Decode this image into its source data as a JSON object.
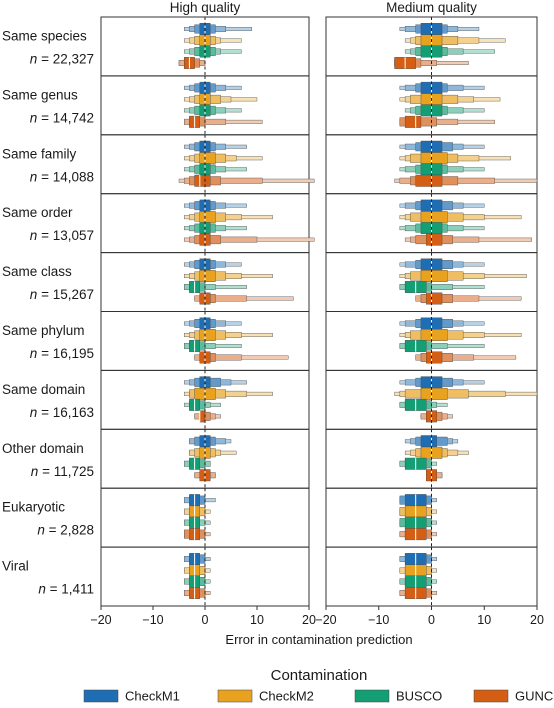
{
  "chart_data": {
    "type": "letter-value",
    "panels": [
      "High quality",
      "Medium quality"
    ],
    "xlabel": "Error in contamination prediction",
    "xlim": [
      -20,
      20
    ],
    "xticks": [
      -20,
      -10,
      0,
      10,
      20
    ],
    "xtick_labels": [
      "−20",
      "−10",
      "0",
      "10",
      "20"
    ],
    "reference_line_x": 0,
    "legend": {
      "title": "Contamination",
      "entries": [
        {
          "name": "CheckM1",
          "color": "#1f6eb4"
        },
        {
          "name": "CheckM2",
          "color": "#e8a21f"
        },
        {
          "name": "BUSCO",
          "color": "#139e73"
        },
        {
          "name": "GUNC",
          "color": "#d45f14"
        }
      ]
    },
    "rows": [
      {
        "label": "Same species",
        "n": "22,327",
        "data": [
          [
            [
              0,
              -1,
              1,
              -2,
              2,
              -3,
              4,
              -4,
              9
            ],
            [
              0,
              -1,
              1,
              -2,
              2,
              -3,
              3,
              -4,
              7
            ],
            [
              0,
              -1,
              1,
              -2,
              2,
              -3,
              3,
              -4,
              7
            ],
            [
              -3,
              -4,
              -2,
              -4,
              -1,
              -5,
              0,
              -5,
              0
            ]
          ],
          [
            [
              0,
              -2,
              2,
              -3,
              3,
              -5,
              5,
              -6,
              9
            ],
            [
              0,
              -2,
              2,
              -3,
              5,
              -4,
              9,
              -5,
              14
            ],
            [
              0,
              -2,
              2,
              -3,
              3,
              -4,
              6,
              -5,
              12
            ],
            [
              -5,
              -7,
              -3,
              -7,
              -2,
              -7,
              1,
              -7,
              7
            ]
          ]
        ]
      },
      {
        "label": "Same genus",
        "n": "14,742",
        "data": [
          [
            [
              0,
              -1,
              1,
              -2,
              2,
              -3,
              4,
              -4,
              7
            ],
            [
              0,
              -1,
              1,
              -2,
              3,
              -3,
              5,
              -4,
              10
            ],
            [
              0,
              -1,
              1,
              -2,
              2,
              -3,
              4,
              -4,
              7
            ],
            [
              -2,
              -3,
              -1,
              -3,
              0,
              -4,
              4,
              -4,
              11
            ]
          ],
          [
            [
              0,
              -2,
              2,
              -3,
              3,
              -5,
              6,
              -6,
              10
            ],
            [
              0,
              -2,
              2,
              -4,
              5,
              -5,
              8,
              -6,
              13
            ],
            [
              0,
              -2,
              2,
              -3,
              3,
              -4,
              6,
              -5,
              10
            ],
            [
              -3,
              -5,
              -2,
              -6,
              1,
              -6,
              5,
              -6,
              12
            ]
          ]
        ]
      },
      {
        "label": "Same family",
        "n": "14,088",
        "data": [
          [
            [
              0,
              -1,
              1,
              -2,
              2,
              -3,
              4,
              -4,
              8
            ],
            [
              0,
              -1,
              2,
              -2,
              4,
              -3,
              6,
              -4,
              11
            ],
            [
              0,
              -1,
              1,
              -2,
              2,
              -3,
              4,
              -4,
              8
            ],
            [
              -1,
              -2,
              1,
              -3,
              3,
              -4,
              11,
              -5,
              21
            ]
          ],
          [
            [
              0,
              -2,
              2,
              -3,
              4,
              -5,
              6,
              -6,
              10
            ],
            [
              0,
              -2,
              3,
              -4,
              5,
              -5,
              9,
              -6,
              15
            ],
            [
              0,
              -2,
              2,
              -3,
              3,
              -5,
              6,
              -6,
              10
            ],
            [
              0,
              -3,
              2,
              -4,
              5,
              -6,
              12,
              -7,
              20
            ]
          ]
        ]
      },
      {
        "label": "Same order",
        "n": "13,057",
        "data": [
          [
            [
              0,
              -1,
              1,
              -2,
              2,
              -3,
              4,
              -4,
              8
            ],
            [
              0,
              -1,
              2,
              -2,
              4,
              -3,
              7,
              -4,
              13
            ],
            [
              0,
              -1,
              1,
              -2,
              2,
              -3,
              4,
              -4,
              8
            ],
            [
              0,
              -1,
              1,
              -2,
              3,
              -3,
              10,
              -4,
              21
            ]
          ],
          [
            [
              0,
              -2,
              2,
              -3,
              4,
              -5,
              6,
              -6,
              10
            ],
            [
              0,
              -2,
              3,
              -4,
              6,
              -5,
              10,
              -6,
              17
            ],
            [
              0,
              -2,
              2,
              -3,
              3,
              -5,
              6,
              -6,
              10
            ],
            [
              0,
              -1,
              2,
              -3,
              4,
              -4,
              9,
              -5,
              19
            ]
          ]
        ]
      },
      {
        "label": "Same class",
        "n": "15,267",
        "data": [
          [
            [
              0,
              -1,
              1,
              -2,
              2,
              -3,
              4,
              -4,
              7
            ],
            [
              0,
              -1,
              2,
              -2,
              4,
              -3,
              7,
              -4,
              13
            ],
            [
              -2,
              -3,
              -1,
              -3,
              0,
              -4,
              2,
              -4,
              8
            ],
            [
              0,
              -1,
              1,
              -1,
              2,
              -2,
              8,
              -2,
              17
            ]
          ],
          [
            [
              0,
              -2,
              2,
              -3,
              4,
              -5,
              6,
              -6,
              10
            ],
            [
              0,
              -2,
              3,
              -4,
              6,
              -5,
              10,
              -6,
              18
            ],
            [
              -3,
              -5,
              -1,
              -5,
              0,
              -6,
              4,
              -6,
              10
            ],
            [
              0,
              -1,
              2,
              -2,
              4,
              -3,
              9,
              -3,
              17
            ]
          ]
        ]
      },
      {
        "label": "Same phylum",
        "n": "16,195",
        "data": [
          [
            [
              0,
              -1,
              1,
              -2,
              2,
              -3,
              4,
              -4,
              7
            ],
            [
              0,
              -1,
              2,
              -2,
              4,
              -3,
              7,
              -4,
              13
            ],
            [
              -2,
              -3,
              -1,
              -3,
              0,
              -4,
              2,
              -4,
              7
            ],
            [
              0,
              -1,
              1,
              -1,
              2,
              -2,
              7,
              -2,
              16
            ]
          ],
          [
            [
              0,
              -2,
              2,
              -3,
              4,
              -5,
              6,
              -6,
              10
            ],
            [
              0,
              -2,
              3,
              -4,
              6,
              -5,
              10,
              -6,
              17
            ],
            [
              -3,
              -5,
              -1,
              -5,
              0,
              -6,
              3,
              -6,
              10
            ],
            [
              0,
              -1,
              2,
              -2,
              4,
              -3,
              8,
              -3,
              16
            ]
          ]
        ]
      },
      {
        "label": "Same domain",
        "n": "16,163",
        "data": [
          [
            [
              0,
              -1,
              1,
              -2,
              3,
              -3,
              5,
              -4,
              8
            ],
            [
              0,
              -2,
              2,
              -3,
              4,
              -3,
              8,
              -4,
              13
            ],
            [
              -2,
              -3,
              -1,
              -3,
              0,
              -3,
              1,
              -4,
              3
            ],
            [
              -1,
              -1,
              0,
              -1,
              1,
              -2,
              2,
              -2,
              3
            ]
          ],
          [
            [
              0,
              -2,
              2,
              -3,
              4,
              -5,
              6,
              -6,
              10
            ],
            [
              0,
              -2,
              3,
              -5,
              7,
              -6,
              14,
              -7,
              20
            ],
            [
              -3,
              -5,
              -1,
              -5,
              0,
              -6,
              1,
              -6,
              3
            ],
            [
              0,
              -1,
              1,
              -1,
              2,
              -2,
              3,
              -2,
              4
            ]
          ]
        ]
      },
      {
        "label": "Other domain",
        "n": "11,725",
        "data": [
          [
            [
              0,
              -1,
              1,
              -2,
              2,
              -3,
              4,
              -3,
              5
            ],
            [
              0,
              -1,
              1,
              -2,
              2,
              -3,
              3,
              -3,
              6
            ],
            [
              -2,
              -3,
              -1,
              -3,
              0,
              -4,
              1,
              -4,
              1
            ],
            [
              0,
              -1,
              1,
              -1,
              1,
              -2,
              2,
              -2,
              2
            ]
          ],
          [
            [
              0,
              -2,
              1,
              -3,
              3,
              -4,
              4,
              -5,
              5
            ],
            [
              0,
              -2,
              2,
              -3,
              3,
              -4,
              5,
              -5,
              7
            ],
            [
              -3,
              -5,
              -1,
              -5,
              0,
              -6,
              0,
              -6,
              1
            ],
            [
              0,
              -1,
              1,
              -1,
              1,
              -1,
              2,
              -1,
              2
            ]
          ]
        ]
      },
      {
        "label": "Eukaryotic",
        "n": "2,828",
        "data": [
          [
            [
              -2,
              -3,
              -1,
              -3,
              0,
              -4,
              0,
              -4,
              2
            ],
            [
              -2,
              -3,
              -1,
              -3,
              0,
              -4,
              0,
              -4,
              1
            ],
            [
              -2,
              -3,
              -1,
              -3,
              -1,
              -4,
              0,
              -4,
              1
            ],
            [
              -2,
              -3,
              -1,
              -4,
              0,
              -4,
              0,
              -4,
              1
            ]
          ],
          [
            [
              -3,
              -5,
              -1,
              -6,
              0,
              -6,
              0,
              -6,
              1
            ],
            [
              -3,
              -5,
              -1,
              -6,
              0,
              -6,
              0,
              -6,
              1
            ],
            [
              -3,
              -5,
              -1,
              -6,
              0,
              -6,
              0,
              -6,
              1
            ],
            [
              -3,
              -5,
              -1,
              -5,
              0,
              -6,
              0,
              -6,
              1
            ]
          ]
        ]
      },
      {
        "label": "Viral",
        "n": "1,411",
        "data": [
          [
            [
              -2,
              -3,
              -1,
              -3,
              0,
              -4,
              0,
              -4,
              1
            ],
            [
              -2,
              -3,
              -1,
              -3,
              0,
              -4,
              0,
              -4,
              1
            ],
            [
              -2,
              -3,
              -1,
              -3,
              0,
              -4,
              0,
              -4,
              1
            ],
            [
              -2,
              -3,
              -1,
              -3,
              0,
              -4,
              0,
              -4,
              1
            ]
          ],
          [
            [
              -3,
              -5,
              -1,
              -5,
              0,
              -6,
              0,
              -6,
              1
            ],
            [
              -3,
              -5,
              -1,
              -5,
              0,
              -6,
              0,
              -6,
              1
            ],
            [
              -3,
              -5,
              -1,
              -5,
              0,
              -6,
              0,
              -6,
              1
            ],
            [
              -3,
              -5,
              -1,
              -5,
              0,
              -6,
              0,
              -6,
              1
            ]
          ]
        ]
      }
    ]
  }
}
